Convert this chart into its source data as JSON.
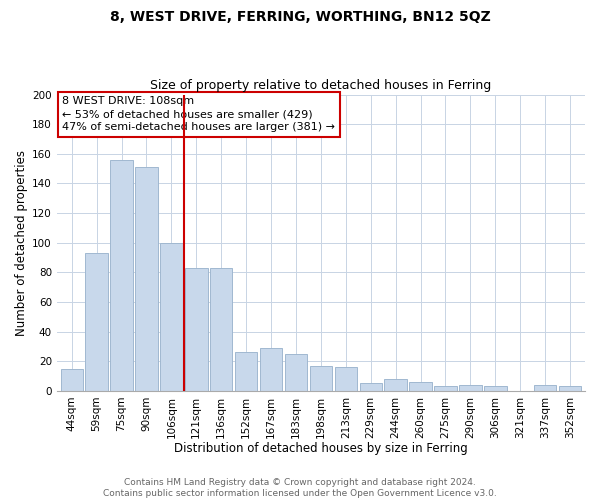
{
  "title": "8, WEST DRIVE, FERRING, WORTHING, BN12 5QZ",
  "subtitle": "Size of property relative to detached houses in Ferring",
  "xlabel": "Distribution of detached houses by size in Ferring",
  "ylabel": "Number of detached properties",
  "categories": [
    "44sqm",
    "59sqm",
    "75sqm",
    "90sqm",
    "106sqm",
    "121sqm",
    "136sqm",
    "152sqm",
    "167sqm",
    "183sqm",
    "198sqm",
    "213sqm",
    "229sqm",
    "244sqm",
    "260sqm",
    "275sqm",
    "290sqm",
    "306sqm",
    "321sqm",
    "337sqm",
    "352sqm"
  ],
  "values": [
    15,
    93,
    156,
    151,
    100,
    83,
    83,
    26,
    29,
    25,
    17,
    16,
    5,
    8,
    6,
    3,
    4,
    3,
    0,
    4,
    3
  ],
  "bar_color": "#c8d8eb",
  "bar_edge_color": "#a0b8d0",
  "highlight_index": 4,
  "highlight_line_color": "#cc0000",
  "ylim": [
    0,
    200
  ],
  "yticks": [
    0,
    20,
    40,
    60,
    80,
    100,
    120,
    140,
    160,
    180,
    200
  ],
  "annotation_line1": "8 WEST DRIVE: 108sqm",
  "annotation_line2": "← 53% of detached houses are smaller (429)",
  "annotation_line3": "47% of semi-detached houses are larger (381) →",
  "annotation_box_color": "#ffffff",
  "annotation_box_edge": "#cc0000",
  "footer_line1": "Contains HM Land Registry data © Crown copyright and database right 2024.",
  "footer_line2": "Contains public sector information licensed under the Open Government Licence v3.0.",
  "title_fontsize": 10,
  "subtitle_fontsize": 9,
  "xlabel_fontsize": 8.5,
  "ylabel_fontsize": 8.5,
  "tick_fontsize": 7.5,
  "annotation_fontsize": 8,
  "footer_fontsize": 6.5,
  "grid_color": "#c8d4e4",
  "background_color": "#ffffff"
}
